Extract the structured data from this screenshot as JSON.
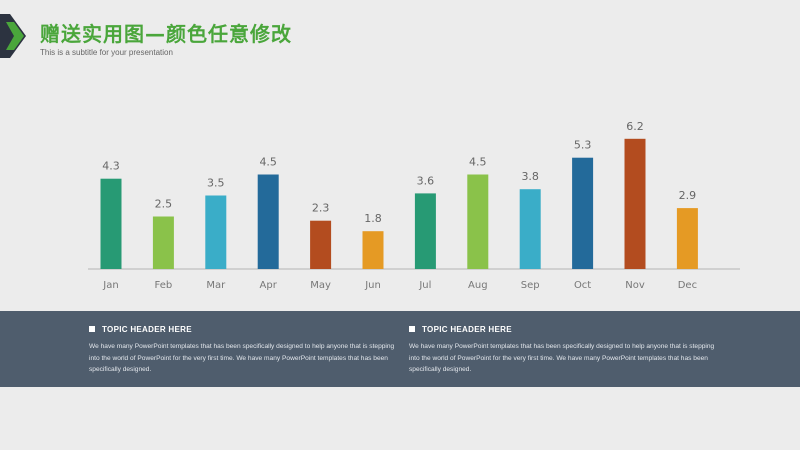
{
  "header": {
    "title": "赠送实用图—颜色任意修改",
    "subtitle": "This is a subtitle for your presentation"
  },
  "colors": {
    "title_green": "#4aa63b",
    "band": "#4f5d6d",
    "logo_dark": "#2c3340",
    "logo_green": "#4aa63b"
  },
  "chart_data": {
    "type": "bar",
    "categories": [
      "Jan",
      "Feb",
      "Mar",
      "Apr",
      "May",
      "Jun",
      "Jul",
      "Aug",
      "Sep",
      "Oct",
      "Nov",
      "Dec"
    ],
    "values": [
      4.3,
      2.5,
      3.5,
      4.5,
      2.3,
      1.8,
      3.6,
      4.5,
      3.8,
      5.3,
      6.2,
      2.9
    ],
    "colors": [
      "#279a74",
      "#8ac24a",
      "#3aadc8",
      "#236a9a",
      "#b34c1f",
      "#e59a24",
      "#279a74",
      "#8ac24a",
      "#3aadc8",
      "#236a9a",
      "#b34c1f",
      "#e59a24"
    ],
    "ylim": [
      0,
      6.5
    ],
    "grid": false,
    "data_labels": true,
    "title": "",
    "xlabel": "",
    "ylabel": ""
  },
  "band": {
    "left": {
      "header": "TOPIC HEADER HERE",
      "body": "We have many PowerPoint templates that has been specifically designed to help anyone that is stepping into the world of PowerPoint for the very first time. We have many PowerPoint templates that has been specifically designed."
    },
    "right": {
      "header": "TOPIC HEADER HERE",
      "body": "We have many PowerPoint templates that has been specifically designed to help anyone that is stepping into the world of PowerPoint for the very first time. We have many PowerPoint templates that has been specifically designed."
    }
  }
}
